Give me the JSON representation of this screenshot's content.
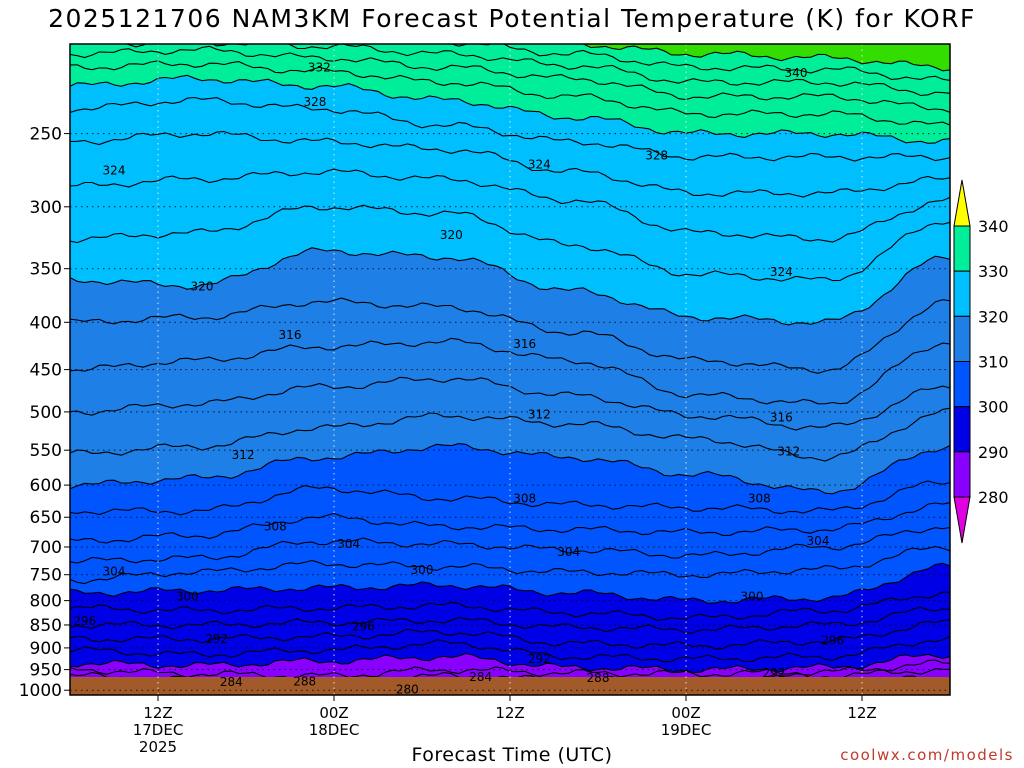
{
  "chart_data": {
    "type": "heatmap",
    "title": "2025121706 NAM3KM Forecast Potential Temperature (K) for KORF",
    "xlabel": "Forecast Time (UTC)",
    "ylabel": "",
    "y_scale": "log",
    "y_inverted": true,
    "ylim": [
      1012,
      200
    ],
    "y_ticks": [
      250,
      300,
      350,
      400,
      450,
      500,
      550,
      600,
      650,
      700,
      750,
      800,
      850,
      900,
      950,
      1000
    ],
    "x_hours": [
      0,
      60
    ],
    "x_ticks": [
      {
        "hour": 6,
        "lines": [
          "12Z",
          "17DEC",
          "2025"
        ]
      },
      {
        "hour": 18,
        "lines": [
          "00Z",
          "18DEC"
        ]
      },
      {
        "hour": 30,
        "lines": [
          "12Z"
        ]
      },
      {
        "hour": 42,
        "lines": [
          "00Z",
          "19DEC"
        ]
      },
      {
        "hour": 54,
        "lines": [
          "12Z"
        ]
      }
    ],
    "grid": true,
    "colorbar": {
      "levels": [
        270,
        280,
        290,
        300,
        310,
        320,
        330,
        340,
        350
      ],
      "labels": [
        280,
        290,
        300,
        310,
        320,
        330,
        340
      ],
      "colors": [
        "#e000e0",
        "#8a00ff",
        "#0000e6",
        "#0055ff",
        "#1e7fe6",
        "#00bfff",
        "#00ee99",
        "#33dd00",
        "#ffff00"
      ]
    },
    "surface_color": "#a35a2a",
    "contour_interval": 2,
    "isentropes": [
      {
        "theta": 280,
        "p": [
          1000,
          999,
          999,
          1000,
          999,
          1000,
          999,
          1000
        ]
      },
      {
        "theta": 282,
        "p": [
          995,
          996,
          997,
          996,
          996,
          997,
          995,
          990
        ]
      },
      {
        "theta": 284,
        "p": [
          992,
          992,
          990,
          985,
          988,
          990,
          980,
          970
        ]
      },
      {
        "theta": 286,
        "p": [
          965,
          975,
          980,
          965,
          975,
          978,
          965,
          950
        ]
      },
      {
        "theta": 288,
        "p": [
          950,
          960,
          965,
          950,
          958,
          960,
          955,
          935
        ]
      },
      {
        "theta": 290,
        "p": [
          935,
          940,
          930,
          920,
          945,
          950,
          945,
          915
        ]
      },
      {
        "theta": 292,
        "p": [
          905,
          915,
          905,
          890,
          920,
          925,
          920,
          880
        ]
      },
      {
        "theta": 294,
        "p": [
          880,
          880,
          875,
          865,
          890,
          895,
          885,
          845
        ]
      },
      {
        "theta": 296,
        "p": [
          850,
          850,
          845,
          840,
          855,
          860,
          850,
          815
        ]
      },
      {
        "theta": 298,
        "p": [
          815,
          820,
          815,
          810,
          825,
          835,
          820,
          785
        ]
      },
      {
        "theta": 300,
        "p": [
          785,
          780,
          775,
          770,
          785,
          800,
          795,
          735
        ]
      },
      {
        "theta": 302,
        "p": [
          760,
          745,
          730,
          735,
          745,
          750,
          740,
          700
        ]
      },
      {
        "theta": 304,
        "p": [
          725,
          720,
          690,
          695,
          705,
          715,
          700,
          665
        ]
      },
      {
        "theta": 306,
        "p": [
          690,
          680,
          650,
          665,
          670,
          675,
          670,
          630
        ]
      },
      {
        "theta": 308,
        "p": [
          640,
          640,
          605,
          620,
          630,
          635,
          640,
          595
        ]
      },
      {
        "theta": 310,
        "p": [
          600,
          590,
          560,
          545,
          560,
          585,
          610,
          545
        ]
      },
      {
        "theta": 312,
        "p": [
          555,
          545,
          520,
          505,
          515,
          535,
          560,
          500
        ]
      },
      {
        "theta": 314,
        "p": [
          500,
          490,
          470,
          460,
          480,
          505,
          520,
          470
        ]
      },
      {
        "theta": 316,
        "p": [
          450,
          440,
          425,
          420,
          440,
          480,
          490,
          420
        ]
      },
      {
        "theta": 318,
        "p": [
          400,
          395,
          380,
          385,
          410,
          440,
          450,
          380
        ]
      },
      {
        "theta": 320,
        "p": [
          360,
          365,
          335,
          340,
          370,
          395,
          400,
          340
        ]
      },
      {
        "theta": 322,
        "p": [
          325,
          320,
          300,
          305,
          330,
          355,
          360,
          310
        ]
      },
      {
        "theta": 324,
        "p": [
          285,
          280,
          275,
          280,
          295,
          320,
          325,
          295
        ]
      },
      {
        "theta": 326,
        "p": [
          255,
          250,
          255,
          260,
          275,
          290,
          290,
          280
        ]
      },
      {
        "theta": 328,
        "p": [
          235,
          230,
          235,
          245,
          255,
          265,
          265,
          265
        ]
      },
      {
        "theta": 330,
        "p": [
          222,
          218,
          222,
          230,
          240,
          250,
          250,
          255
        ]
      },
      {
        "theta": 332,
        "p": [
          212,
          210,
          214,
          220,
          228,
          238,
          238,
          245
        ]
      },
      {
        "theta": 334,
        "p": [
          205,
          203,
          207,
          212,
          218,
          228,
          228,
          235
        ]
      },
      {
        "theta": 336,
        "p": [
          200,
          199,
          201,
          205,
          211,
          220,
          220,
          226
        ]
      },
      {
        "theta": 338,
        "p": [
          196,
          195,
          196,
          199,
          205,
          212,
          213,
          219
        ]
      },
      {
        "theta": 340,
        "p": [
          193,
          192,
          193,
          195,
          200,
          205,
          207,
          212
        ]
      }
    ],
    "contour_labels": [
      {
        "text": "332",
        "hour": 17.0,
        "p": 212
      },
      {
        "text": "328",
        "hour": 16.7,
        "p": 231
      },
      {
        "text": "340",
        "hour": 49.5,
        "p": 215
      },
      {
        "text": "324",
        "hour": 3.0,
        "p": 274
      },
      {
        "text": "324",
        "hour": 32.0,
        "p": 270
      },
      {
        "text": "328",
        "hour": 40.0,
        "p": 264
      },
      {
        "text": "320",
        "hour": 26.0,
        "p": 322
      },
      {
        "text": "320",
        "hour": 9.0,
        "p": 366
      },
      {
        "text": "324",
        "hour": 48.5,
        "p": 353
      },
      {
        "text": "316",
        "hour": 15.0,
        "p": 413
      },
      {
        "text": "316",
        "hour": 31.0,
        "p": 422
      },
      {
        "text": "312",
        "hour": 32.0,
        "p": 503
      },
      {
        "text": "316",
        "hour": 48.5,
        "p": 507
      },
      {
        "text": "312",
        "hour": 11.8,
        "p": 557
      },
      {
        "text": "312",
        "hour": 49.0,
        "p": 552
      },
      {
        "text": "308",
        "hour": 31.0,
        "p": 620
      },
      {
        "text": "308",
        "hour": 47.0,
        "p": 620
      },
      {
        "text": "308",
        "hour": 14.0,
        "p": 665
      },
      {
        "text": "304",
        "hour": 19.0,
        "p": 695
      },
      {
        "text": "304",
        "hour": 34.0,
        "p": 709
      },
      {
        "text": "304",
        "hour": 51.0,
        "p": 690
      },
      {
        "text": "304",
        "hour": 3.0,
        "p": 744
      },
      {
        "text": "300",
        "hour": 24.0,
        "p": 741
      },
      {
        "text": "300",
        "hour": 8.0,
        "p": 792
      },
      {
        "text": "300",
        "hour": 46.5,
        "p": 792
      },
      {
        "text": "296",
        "hour": 1.0,
        "p": 842
      },
      {
        "text": "296",
        "hour": 20.0,
        "p": 853
      },
      {
        "text": "296",
        "hour": 52.0,
        "p": 883
      },
      {
        "text": "292",
        "hour": 10.0,
        "p": 880
      },
      {
        "text": "292",
        "hour": 32.0,
        "p": 925
      },
      {
        "text": "292",
        "hour": 48.0,
        "p": 958
      },
      {
        "text": "284",
        "hour": 11.0,
        "p": 980
      },
      {
        "text": "288",
        "hour": 16.0,
        "p": 978
      },
      {
        "text": "284",
        "hour": 28.0,
        "p": 968
      },
      {
        "text": "288",
        "hour": 36.0,
        "p": 970
      },
      {
        "text": "280",
        "hour": 23.0,
        "p": 998
      }
    ]
  },
  "watermark": "coolwx.com/models"
}
